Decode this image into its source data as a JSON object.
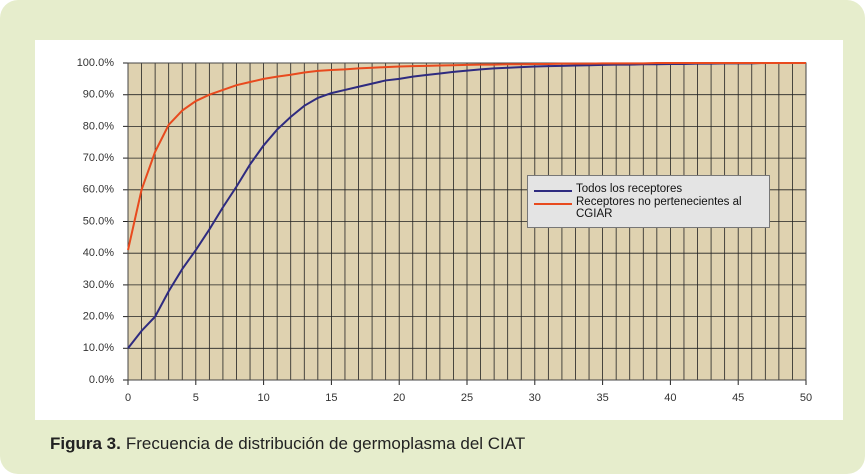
{
  "chart_data": {
    "type": "line",
    "caption": {
      "label": "Figura 3.",
      "text": "Frecuencia de distribución de germoplasma del CIAT"
    },
    "x": [
      0,
      1,
      2,
      3,
      4,
      5,
      6,
      7,
      8,
      9,
      10,
      11,
      12,
      13,
      14,
      15,
      16,
      17,
      18,
      19,
      20,
      21,
      22,
      23,
      24,
      25,
      26,
      27,
      28,
      29,
      30,
      31,
      32,
      33,
      34,
      35,
      36,
      37,
      38,
      39,
      40,
      41,
      42,
      43,
      44,
      45,
      46,
      47,
      48,
      49,
      50
    ],
    "series": [
      {
        "name": "Todos los receptores",
        "color": "#2e2b80",
        "values": [
          10,
          15.5,
          20,
          28,
          35,
          41,
          47.5,
          54.5,
          61,
          68,
          74,
          79,
          83,
          86.5,
          89,
          90.5,
          91.5,
          92.5,
          93.5,
          94.5,
          95,
          95.7,
          96.2,
          96.7,
          97.2,
          97.6,
          98,
          98.3,
          98.5,
          98.7,
          98.9,
          99,
          99.1,
          99.2,
          99.3,
          99.4,
          99.5,
          99.5,
          99.6,
          99.6,
          99.7,
          99.7,
          99.8,
          99.8,
          99.9,
          99.9,
          99.9,
          100,
          100,
          100,
          100
        ]
      },
      {
        "name": "Receptores no pertenecientes al CGIAR",
        "color": "#e84a1e",
        "values": [
          41,
          60,
          72,
          80.5,
          85,
          88,
          90,
          91.5,
          93,
          94,
          95,
          95.7,
          96.3,
          97,
          97.5,
          97.8,
          98,
          98.3,
          98.5,
          98.7,
          98.9,
          99,
          99.1,
          99.2,
          99.3,
          99.4,
          99.5,
          99.5,
          99.6,
          99.6,
          99.7,
          99.7,
          99.8,
          99.8,
          99.8,
          99.9,
          99.9,
          99.9,
          99.9,
          100,
          100,
          100,
          100,
          100,
          100,
          100,
          100,
          100,
          100,
          100,
          100
        ]
      }
    ],
    "xlim": [
      0,
      50
    ],
    "xticks": [
      0,
      5,
      10,
      15,
      20,
      25,
      30,
      35,
      40,
      45,
      50
    ],
    "xminorticks": [
      0,
      1,
      2,
      3,
      4,
      5,
      6,
      7,
      8,
      9,
      10,
      11,
      12,
      13,
      14,
      15,
      16,
      17,
      18,
      19,
      20,
      21,
      22,
      23,
      24,
      25,
      26,
      27,
      28,
      29,
      30,
      31,
      32,
      33,
      34,
      35,
      36,
      37,
      38,
      39,
      40,
      41,
      42,
      43,
      44,
      45,
      46,
      47,
      48,
      49,
      50
    ],
    "ylim": [
      0,
      100
    ],
    "yticks": [
      {
        "value": 0,
        "label": "0.0%"
      },
      {
        "value": 10,
        "label": "10.0%"
      },
      {
        "value": 20,
        "label": "20.0%"
      },
      {
        "value": 30,
        "label": "30.0%"
      },
      {
        "value": 40,
        "label": "40.0%"
      },
      {
        "value": 50,
        "label": "50.0%"
      },
      {
        "value": 60,
        "label": "60.0%"
      },
      {
        "value": 70,
        "label": "70.0%"
      },
      {
        "value": 80,
        "label": "80.0%"
      },
      {
        "value": 90,
        "label": "90.0%"
      },
      {
        "value": 100,
        "label": "100.0%"
      }
    ],
    "grid": true,
    "legend": "right"
  }
}
